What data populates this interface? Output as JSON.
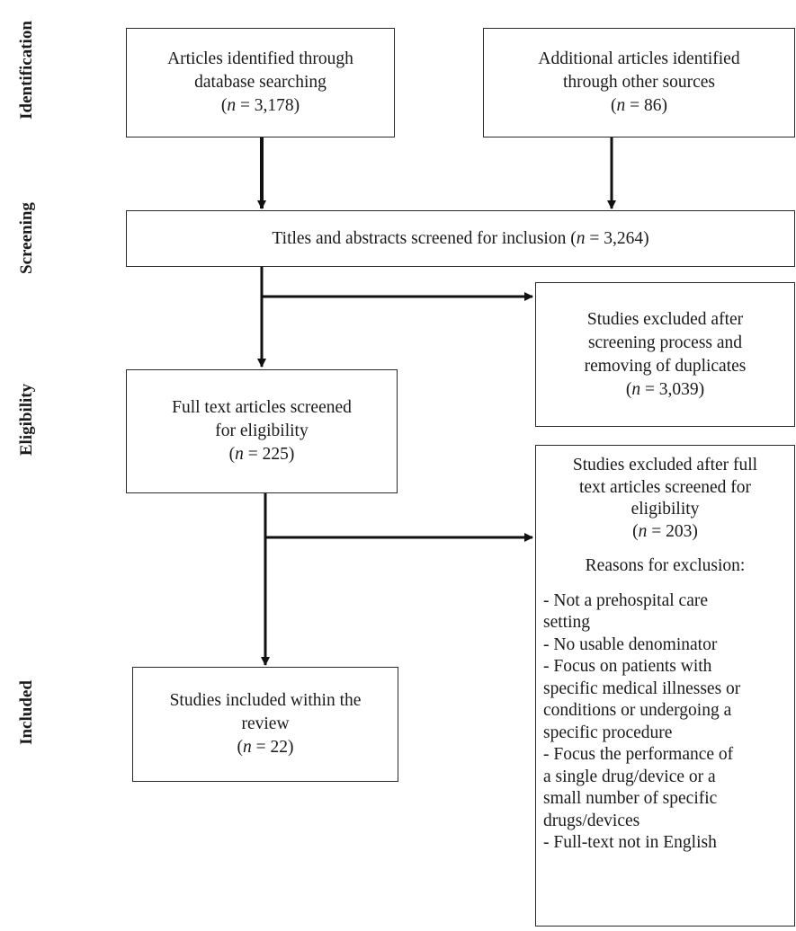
{
  "stages": {
    "identification": "Identification",
    "screening": "Screening",
    "eligibility": "Eligibility",
    "included": "Included"
  },
  "boxes": {
    "database": {
      "line1": "Articles identified through",
      "line2": "database searching",
      "n_prefix": "(",
      "n_var": "n",
      "n_value": " = 3,178)"
    },
    "other": {
      "line1": "Additional articles identified",
      "line2": "through other sources",
      "n_prefix": "(",
      "n_var": "n",
      "n_value": " = 86)"
    },
    "screened": {
      "text": "Titles and abstracts screened for inclusion (",
      "n_var": "n",
      "n_value": " = 3,264)"
    },
    "excluded_screening": {
      "line1": "Studies excluded after",
      "line2": "screening process and",
      "line3": "removing of duplicates",
      "n_prefix": "(",
      "n_var": "n",
      "n_value": " = 3,039)"
    },
    "fulltext": {
      "line1": "Full text articles screened",
      "line2": "for eligibility",
      "n_prefix": "(",
      "n_var": "n",
      "n_value": " = 225)"
    },
    "excluded_fulltext": {
      "line1": "Studies excluded after full",
      "line2": "text articles screened for",
      "line3": "eligibility",
      "n_prefix": "(",
      "n_var": "n",
      "n_value": " = 203)",
      "reasons_title": "Reasons for exclusion:",
      "reasons": [
        "- Not a prehospital care",
        "setting",
        "- No usable denominator",
        "- Focus on patients with",
        "specific medical illnesses or",
        "conditions or undergoing a",
        "specific procedure",
        "- Focus the performance of",
        "a single drug/device or a",
        "small number of specific",
        "drugs/devices",
        "- Full-text not in English"
      ]
    },
    "included": {
      "line1": "Studies included within the",
      "line2": "review",
      "n_prefix": "(",
      "n_var": "n",
      "n_value": " = 22)"
    }
  }
}
